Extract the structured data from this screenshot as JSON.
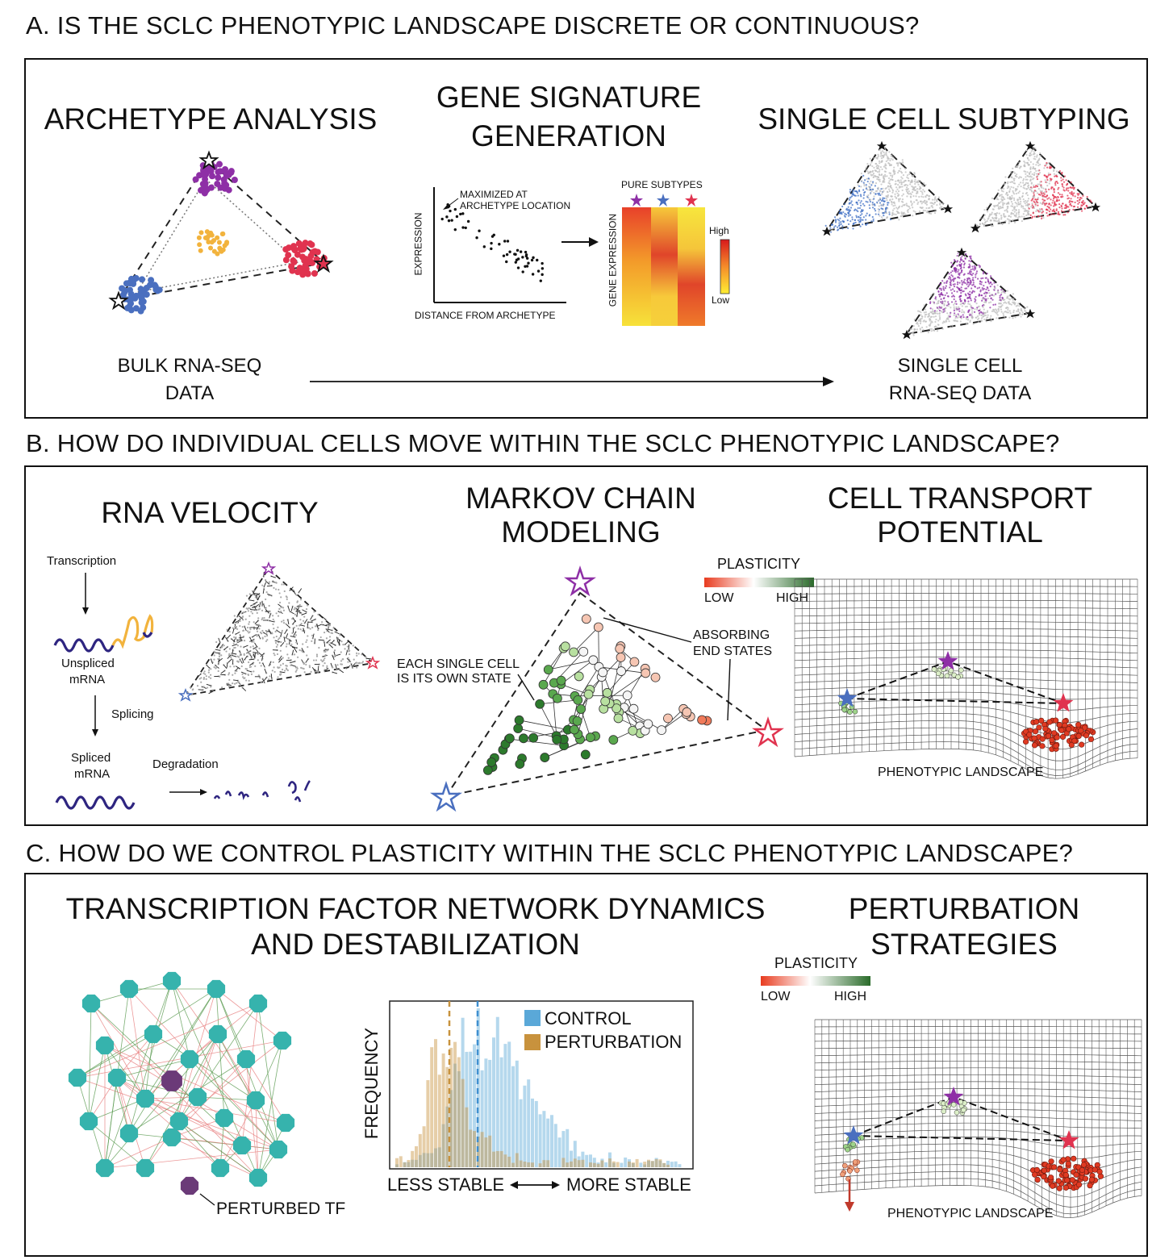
{
  "sections": {
    "a": {
      "title": "A. IS THE SCLC PHENOTYPIC LANDSCAPE DISCRETE OR CONTINUOUS?",
      "archetype_title": "ARCHETYPE ANALYSIS",
      "signature_title_1": "GENE SIGNATURE",
      "signature_title_2": "GENERATION",
      "single_cell_title": "SINGLE CELL SUBTYPING",
      "scatter_annotation_1": "MAXIMIZED AT",
      "scatter_annotation_2": "ARCHETYPE LOCATION",
      "scatter_ylabel": "EXPRESSION",
      "scatter_xlabel": "DISTANCE FROM ARCHETYPE",
      "heatmap_title": "PURE SUBTYPES",
      "heatmap_ylabel": "GENE EXPRESSION",
      "legend_high": "High",
      "legend_low": "Low",
      "bulk_label_1": "BULK RNA-SEQ",
      "bulk_label_2": "DATA",
      "sc_label_1": "SINGLE CELL",
      "sc_label_2": "RNA-SEQ DATA"
    },
    "b": {
      "title": "B. HOW DO INDIVIDUAL CELLS MOVE WITHIN THE SCLC PHENOTYPIC LANDSCAPE?",
      "velocity_title": "RNA VELOCITY",
      "markov_title_1": "MARKOV CHAIN",
      "markov_title_2": "MODELING",
      "transport_title_1": "CELL TRANSPORT",
      "transport_title_2": "POTENTIAL",
      "transcription": "Transcription",
      "unspliced_1": "Unspliced",
      "unspliced_2": "mRNA",
      "splicing": "Splicing",
      "spliced_1": "Spliced",
      "spliced_2": "mRNA",
      "degradation": "Degradation",
      "plasticity": "PLASTICITY",
      "low": "LOW",
      "high": "HIGH",
      "each_cell_1": "EACH SINGLE CELL",
      "each_cell_2": "IS ITS OWN STATE",
      "absorbing_1": "ABSORBING",
      "absorbing_2": "END STATES",
      "landscape_label": "PHENOTYPIC LANDSCAPE"
    },
    "c": {
      "title": "C. HOW DO WE CONTROL PLASTICITY WITHIN THE SCLC PHENOTYPIC LANDSCAPE?",
      "tf_title_1": "TRANSCRIPTION FACTOR NETWORK DYNAMICS",
      "tf_title_2": "AND DESTABILIZATION",
      "perturbation_title_1": "PERTURBATION",
      "perturbation_title_2": "STRATEGIES",
      "perturbed_tf": "PERTURBED TF",
      "hist_ylabel": "FREQUENCY",
      "legend_control": "CONTROL",
      "legend_perturbation": "PERTURBATION",
      "less_stable": "LESS STABLE",
      "more_stable": "MORE STABLE",
      "plasticity": "PLASTICITY",
      "low": "LOW",
      "high": "HIGH",
      "landscape_label": "PHENOTYPIC LANDSCAPE"
    }
  },
  "colors": {
    "purple": "#8e2fa6",
    "blue": "#4a6fbf",
    "red": "#e0334f",
    "orange": "#f2b33d",
    "teal": "#36b3ad",
    "control": "#5aa8d8",
    "perturbation": "#c8923d"
  }
}
